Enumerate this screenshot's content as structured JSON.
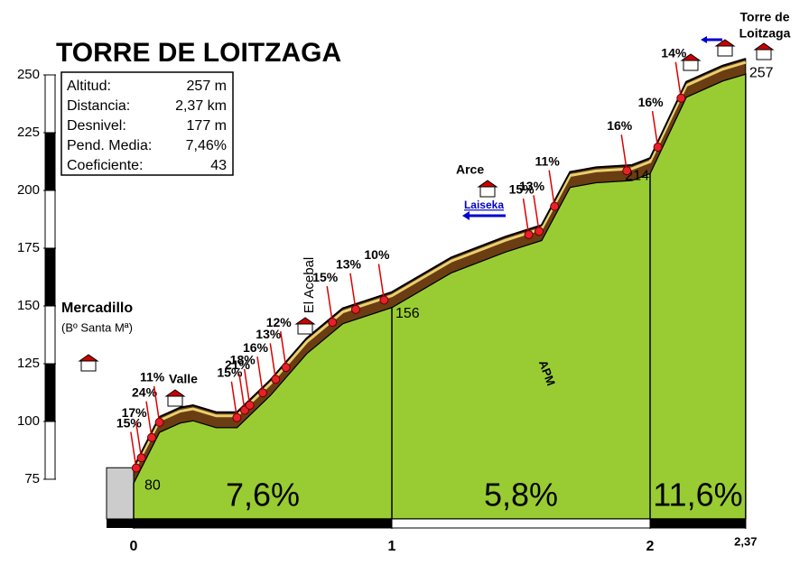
{
  "chart_data": {
    "type": "profile",
    "title": "TORRE DE LOITZAGA",
    "x": [
      0,
      0.1,
      0.18,
      0.23,
      0.32,
      0.4,
      0.53,
      0.67,
      0.81,
      1,
      1.23,
      1.44,
      1.58,
      1.69,
      1.79,
      1.93,
      2,
      2.14,
      2.28,
      2.37
    ],
    "values": [
      80,
      102,
      106,
      107,
      104,
      104,
      118,
      136,
      149,
      156,
      171,
      180,
      185,
      208,
      210,
      211,
      214,
      247,
      254,
      257
    ],
    "color": "#99cc33",
    "xlim": [
      0,
      2.37
    ],
    "xticks": [
      0,
      1,
      2,
      {
        "value": 2.37,
        "label": "2,37"
      }
    ],
    "ylim": [
      75,
      250
    ],
    "yticks": [
      75,
      100,
      125,
      150,
      175,
      200,
      225,
      250
    ],
    "stats": [
      {
        "label": "Altitud:",
        "value": "257 m"
      },
      {
        "label": "Distancia:",
        "value": "2,37 km"
      },
      {
        "label": "Desnivel:",
        "value": "177 m"
      },
      {
        "label": "Pend. Media:",
        "value": "7,46%"
      },
      {
        "label": "Coeficiente:",
        "value": "43"
      }
    ],
    "sections": [
      "7,6%",
      "5,8%",
      "11,6%"
    ],
    "grade_marks": [
      {
        "x": 0.01,
        "label": "15%"
      },
      {
        "x": 0.03,
        "label": "17%"
      },
      {
        "x": 0.07,
        "label": "24%"
      },
      {
        "x": 0.1,
        "label": "11%"
      },
      {
        "x": 0.4,
        "label": "15%"
      },
      {
        "x": 0.43,
        "label": "21%"
      },
      {
        "x": 0.45,
        "label": "18%"
      },
      {
        "x": 0.5,
        "label": "16%"
      },
      {
        "x": 0.55,
        "label": "13%"
      },
      {
        "x": 0.59,
        "label": "12%"
      },
      {
        "x": 0.77,
        "label": "15%"
      },
      {
        "x": 0.86,
        "label": "13%"
      },
      {
        "x": 0.97,
        "label": "10%"
      },
      {
        "x": 1.53,
        "label": "15%"
      },
      {
        "x": 1.57,
        "label": "13%"
      },
      {
        "x": 1.63,
        "label": "11%"
      },
      {
        "x": 1.91,
        "label": "16%"
      },
      {
        "x": 2.03,
        "label": "16%"
      },
      {
        "x": 2.12,
        "label": "14%"
      }
    ],
    "places": [
      "Mercadillo",
      "(Bº Santa Mª)",
      "Valle",
      "El Acebal",
      "Arce",
      "Laiseka",
      "Torre de",
      "Loitzaga"
    ],
    "logo": "APM"
  }
}
